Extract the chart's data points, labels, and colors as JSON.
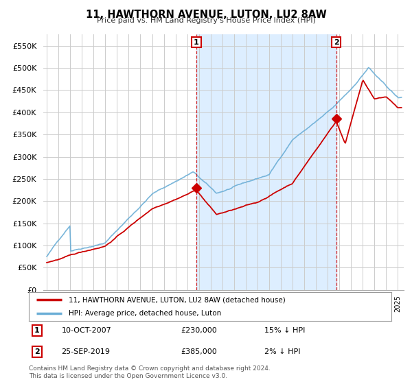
{
  "title": "11, HAWTHORN AVENUE, LUTON, LU2 8AW",
  "subtitle": "Price paid vs. HM Land Registry's House Price Index (HPI)",
  "ylim": [
    0,
    575000
  ],
  "ytick_labels": [
    "£0",
    "£50K",
    "£100K",
    "£150K",
    "£200K",
    "£250K",
    "£300K",
    "£350K",
    "£400K",
    "£450K",
    "£500K",
    "£550K"
  ],
  "ytick_values": [
    0,
    50000,
    100000,
    150000,
    200000,
    250000,
    300000,
    350000,
    400000,
    450000,
    500000,
    550000
  ],
  "background_color": "#ffffff",
  "plot_bg_color": "#ffffff",
  "grid_color": "#cccccc",
  "shade_color": "#ddeeff",
  "sale1_date": 2007.78,
  "sale1_price": 230000,
  "sale2_date": 2019.73,
  "sale2_price": 385000,
  "legend_label_red": "11, HAWTHORN AVENUE, LUTON, LU2 8AW (detached house)",
  "legend_label_blue": "HPI: Average price, detached house, Luton",
  "annotation1_date": "10-OCT-2007",
  "annotation1_price": "£230,000",
  "annotation1_hpi": "15% ↓ HPI",
  "annotation2_date": "25-SEP-2019",
  "annotation2_price": "£385,000",
  "annotation2_hpi": "2% ↓ HPI",
  "footer": "Contains HM Land Registry data © Crown copyright and database right 2024.\nThis data is licensed under the Open Government Licence v3.0.",
  "red_line_color": "#cc0000",
  "blue_line_color": "#6baed6",
  "box_color": "#cc0000"
}
